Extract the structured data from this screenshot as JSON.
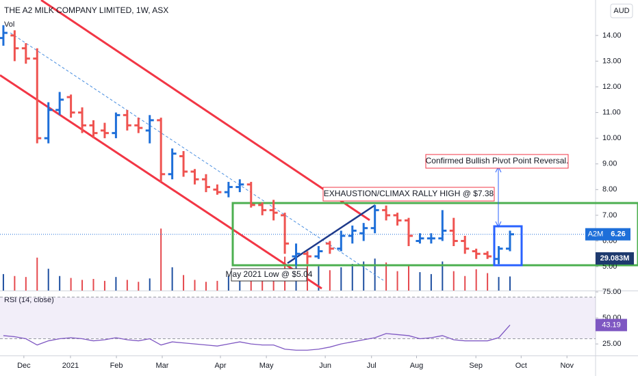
{
  "chart_data": {
    "type": "ohlc",
    "title": "THE A2 MILK COMPANY LIMITED, 1W, ASX",
    "currency": "AUD",
    "symbol": "A2M",
    "up_color": "#1e6fd9",
    "down_color": "#ef5350",
    "x": [
      0,
      1,
      2,
      3,
      4,
      5,
      6,
      7,
      8,
      9,
      10,
      11,
      12,
      13,
      14,
      15,
      16,
      17,
      18,
      19,
      20,
      21,
      22,
      23,
      24,
      25,
      26,
      27,
      28,
      29,
      30,
      31,
      32,
      33,
      34,
      35,
      36,
      37,
      38,
      39,
      40,
      41,
      42,
      43,
      44,
      45
    ],
    "open": [
      13.9,
      14.0,
      13.5,
      13.1,
      10.0,
      11.1,
      11.6,
      11.0,
      10.5,
      10.3,
      10.2,
      10.9,
      10.5,
      10.3,
      10.7,
      8.6,
      9.3,
      8.7,
      8.4,
      8.0,
      7.9,
      8.1,
      8.2,
      7.4,
      7.2,
      7.0,
      5.4,
      5.5,
      5.4,
      5.9,
      5.7,
      6.2,
      6.3,
      6.5,
      7.2,
      7.0,
      6.8,
      6.0,
      6.1,
      6.1,
      6.4,
      6.0,
      5.6,
      5.5,
      5.3,
      5.7
    ],
    "high": [
      14.4,
      14.2,
      13.7,
      13.5,
      11.4,
      11.8,
      11.7,
      11.2,
      10.7,
      10.6,
      11.0,
      11.1,
      10.8,
      10.9,
      10.8,
      9.6,
      9.5,
      8.8,
      8.6,
      8.2,
      8.3,
      8.4,
      8.3,
      7.5,
      7.6,
      7.1,
      5.9,
      5.6,
      5.8,
      6.0,
      6.4,
      6.6,
      6.7,
      7.4,
      7.38,
      7.1,
      6.9,
      6.3,
      6.3,
      7.2,
      6.9,
      6.2,
      5.7,
      5.6,
      5.8,
      6.4
    ],
    "low": [
      13.6,
      13.0,
      12.9,
      9.8,
      9.8,
      10.9,
      10.8,
      10.2,
      10.0,
      10.0,
      10.0,
      10.3,
      10.2,
      9.8,
      8.3,
      8.4,
      8.5,
      8.2,
      7.9,
      7.8,
      7.7,
      7.9,
      7.3,
      7.0,
      6.8,
      5.5,
      5.04,
      5.1,
      5.3,
      5.5,
      5.6,
      5.9,
      6.0,
      6.3,
      6.8,
      6.6,
      5.8,
      5.9,
      5.9,
      6.0,
      5.8,
      5.5,
      5.3,
      5.3,
      5.1,
      5.6
    ],
    "close": [
      14.1,
      13.5,
      13.1,
      10.0,
      11.1,
      11.5,
      11.0,
      10.5,
      10.2,
      10.2,
      10.9,
      10.5,
      10.4,
      10.7,
      8.6,
      9.4,
      8.7,
      8.4,
      8.1,
      7.9,
      8.1,
      8.2,
      7.4,
      7.2,
      7.1,
      5.9,
      5.5,
      5.4,
      5.6,
      5.7,
      6.2,
      6.4,
      6.5,
      7.2,
      7.0,
      6.8,
      6.2,
      6.1,
      6.1,
      6.4,
      6.0,
      5.7,
      5.5,
      5.4,
      5.7,
      6.26
    ],
    "xlim": [
      -0.3,
      52.6
    ],
    "xticks": [
      {
        "value": 1.82,
        "label": "Dec"
      },
      {
        "value": 5.96,
        "label": "2021"
      },
      {
        "value": 10.04,
        "label": "Feb"
      },
      {
        "value": 14.11,
        "label": "Mar"
      },
      {
        "value": 19.28,
        "label": "Apr"
      },
      {
        "value": 23.36,
        "label": "May"
      },
      {
        "value": 28.59,
        "label": "Jun"
      },
      {
        "value": 32.7,
        "label": "Jul"
      },
      {
        "value": 36.7,
        "label": "Aug"
      },
      {
        "value": 41.97,
        "label": "Sep"
      },
      {
        "value": 45.99,
        "label": "Oct"
      },
      {
        "value": 50.06,
        "label": "Nov"
      }
    ],
    "ylim": [
      4.07,
      15.38
    ],
    "yticks": [
      {
        "value": 5,
        "label": "5.00"
      },
      {
        "value": 6,
        "label": "6.00"
      },
      {
        "value": 7,
        "label": "7.00"
      },
      {
        "value": 8,
        "label": "8.00"
      },
      {
        "value": 9,
        "label": "9.00"
      },
      {
        "value": 10,
        "label": "10.00"
      },
      {
        "value": 11,
        "label": "11.00"
      },
      {
        "value": 12,
        "label": "12.00"
      },
      {
        "value": 13,
        "label": "13.00"
      },
      {
        "value": 14,
        "label": "14.00"
      }
    ],
    "volume": {
      "name": "Vol",
      "values": [
        34,
        30,
        28,
        68,
        45,
        30,
        26,
        22,
        24,
        20,
        28,
        22,
        18,
        25,
        128,
        48,
        32,
        22,
        18,
        20,
        30,
        40,
        26,
        22,
        45,
        70,
        58,
        52,
        50,
        42,
        48,
        55,
        60,
        66,
        58,
        40,
        52,
        38,
        34,
        60,
        40,
        30,
        44,
        36,
        28,
        29.083
      ],
      "value_labels": [
        null,
        null,
        null,
        null,
        null,
        null,
        null,
        null,
        null,
        null,
        null,
        null,
        null,
        null,
        null,
        null,
        null,
        null,
        null,
        null,
        null,
        null,
        null,
        null,
        null,
        null,
        null,
        null,
        null,
        null,
        null,
        null,
        null,
        null,
        null,
        null,
        null,
        null,
        null,
        null,
        null,
        null,
        null,
        null,
        null,
        "29.083M"
      ],
      "ylim": [
        0,
        600
      ]
    },
    "rsi": {
      "title": "RSI (14, close)",
      "color": "#7e57c2",
      "values": [
        33,
        32,
        30,
        24,
        28,
        30,
        31,
        30,
        28,
        29,
        31,
        29,
        28,
        30,
        24,
        27,
        26,
        25,
        24,
        23,
        25,
        27,
        25,
        24,
        24,
        20,
        19,
        19,
        20,
        22,
        25,
        27,
        29,
        31,
        35,
        34,
        33,
        30,
        31,
        33,
        29,
        28,
        28,
        28,
        31,
        43.19
      ],
      "ylim": [
        13.9,
        75.7
      ],
      "yticks": [
        {
          "value": 25,
          "label": "25.00"
        },
        {
          "value": 50,
          "label": "50.00"
        },
        {
          "value": 75,
          "label": "75.00"
        }
      ],
      "band": [
        30,
        70
      ]
    },
    "annotations": [
      "EXHAUSTION/CLIMAX RALLY HIGH @ $7.38",
      "Confirmed Bullish Pivot Point Reversal.",
      "May 2021 Low @ $5.04"
    ]
  }
}
